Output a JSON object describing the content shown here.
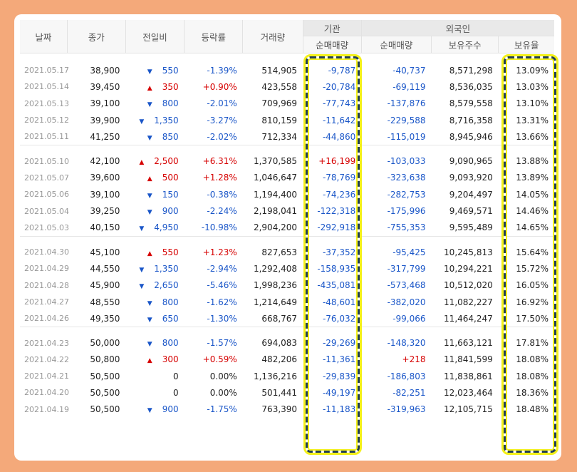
{
  "headers": {
    "date": "날짜",
    "close": "종가",
    "change": "전일비",
    "rate": "등락률",
    "volume": "거래량",
    "inst_group": "기관",
    "inst_net": "순매매량",
    "foreign_group": "외국인",
    "foreign_net": "순매매량",
    "foreign_shares": "보유주수",
    "foreign_ratio": "보유율"
  },
  "groups": [
    [
      {
        "date": "2021.05.17",
        "close": "38,900",
        "dir": "down",
        "change": "550",
        "rate": "-1.39%",
        "volume": "514,905",
        "inst": "-9,787",
        "fnet": "-40,737",
        "shares": "8,571,298",
        "ratio": "13.09%"
      },
      {
        "date": "2021.05.14",
        "close": "39,450",
        "dir": "up",
        "change": "350",
        "rate": "+0.90%",
        "volume": "423,558",
        "inst": "-20,784",
        "fnet": "-69,119",
        "shares": "8,536,035",
        "ratio": "13.03%"
      },
      {
        "date": "2021.05.13",
        "close": "39,100",
        "dir": "down",
        "change": "800",
        "rate": "-2.01%",
        "volume": "709,969",
        "inst": "-77,743",
        "fnet": "-137,876",
        "shares": "8,579,558",
        "ratio": "13.10%"
      },
      {
        "date": "2021.05.12",
        "close": "39,900",
        "dir": "down",
        "change": "1,350",
        "rate": "-3.27%",
        "volume": "810,159",
        "inst": "-11,642",
        "fnet": "-229,588",
        "shares": "8,716,358",
        "ratio": "13.31%"
      },
      {
        "date": "2021.05.11",
        "close": "41,250",
        "dir": "down",
        "change": "850",
        "rate": "-2.02%",
        "volume": "712,334",
        "inst": "-44,860",
        "fnet": "-115,019",
        "shares": "8,945,946",
        "ratio": "13.66%"
      }
    ],
    [
      {
        "date": "2021.05.10",
        "close": "42,100",
        "dir": "up",
        "change": "2,500",
        "rate": "+6.31%",
        "volume": "1,370,585",
        "inst": "+16,199",
        "fnet": "-103,033",
        "shares": "9,090,965",
        "ratio": "13.88%"
      },
      {
        "date": "2021.05.07",
        "close": "39,600",
        "dir": "up",
        "change": "500",
        "rate": "+1.28%",
        "volume": "1,046,647",
        "inst": "-78,769",
        "fnet": "-323,638",
        "shares": "9,093,920",
        "ratio": "13.89%"
      },
      {
        "date": "2021.05.06",
        "close": "39,100",
        "dir": "down",
        "change": "150",
        "rate": "-0.38%",
        "volume": "1,194,400",
        "inst": "-74,236",
        "fnet": "-282,753",
        "shares": "9,204,497",
        "ratio": "14.05%"
      },
      {
        "date": "2021.05.04",
        "close": "39,250",
        "dir": "down",
        "change": "900",
        "rate": "-2.24%",
        "volume": "2,198,041",
        "inst": "-122,318",
        "fnet": "-175,996",
        "shares": "9,469,571",
        "ratio": "14.46%"
      },
      {
        "date": "2021.05.03",
        "close": "40,150",
        "dir": "down",
        "change": "4,950",
        "rate": "-10.98%",
        "volume": "2,904,200",
        "inst": "-292,918",
        "fnet": "-755,353",
        "shares": "9,595,489",
        "ratio": "14.65%"
      }
    ],
    [
      {
        "date": "2021.04.30",
        "close": "45,100",
        "dir": "up",
        "change": "550",
        "rate": "+1.23%",
        "volume": "827,653",
        "inst": "-37,352",
        "fnet": "-95,425",
        "shares": "10,245,813",
        "ratio": "15.64%"
      },
      {
        "date": "2021.04.29",
        "close": "44,550",
        "dir": "down",
        "change": "1,350",
        "rate": "-2.94%",
        "volume": "1,292,408",
        "inst": "-158,935",
        "fnet": "-317,799",
        "shares": "10,294,221",
        "ratio": "15.72%"
      },
      {
        "date": "2021.04.28",
        "close": "45,900",
        "dir": "down",
        "change": "2,650",
        "rate": "-5.46%",
        "volume": "1,998,236",
        "inst": "-435,081",
        "fnet": "-573,468",
        "shares": "10,512,020",
        "ratio": "16.05%"
      },
      {
        "date": "2021.04.27",
        "close": "48,550",
        "dir": "down",
        "change": "800",
        "rate": "-1.62%",
        "volume": "1,214,649",
        "inst": "-48,601",
        "fnet": "-382,020",
        "shares": "11,082,227",
        "ratio": "16.92%"
      },
      {
        "date": "2021.04.26",
        "close": "49,350",
        "dir": "down",
        "change": "650",
        "rate": "-1.30%",
        "volume": "668,767",
        "inst": "-76,032",
        "fnet": "-99,066",
        "shares": "11,464,247",
        "ratio": "17.50%"
      }
    ],
    [
      {
        "date": "2021.04.23",
        "close": "50,000",
        "dir": "down",
        "change": "800",
        "rate": "-1.57%",
        "volume": "694,083",
        "inst": "-29,269",
        "fnet": "-148,320",
        "shares": "11,663,121",
        "ratio": "17.81%"
      },
      {
        "date": "2021.04.22",
        "close": "50,800",
        "dir": "up",
        "change": "300",
        "rate": "+0.59%",
        "volume": "482,206",
        "inst": "-11,361",
        "fnet": "+218",
        "shares": "11,841,599",
        "ratio": "18.08%"
      },
      {
        "date": "2021.04.21",
        "close": "50,500",
        "dir": "none",
        "change": "0",
        "rate": "0.00%",
        "volume": "1,136,216",
        "inst": "-29,839",
        "fnet": "-186,803",
        "shares": "11,838,861",
        "ratio": "18.08%"
      },
      {
        "date": "2021.04.20",
        "close": "50,500",
        "dir": "none",
        "change": "0",
        "rate": "0.00%",
        "volume": "501,441",
        "inst": "-49,197",
        "fnet": "-82,251",
        "shares": "12,023,464",
        "ratio": "18.36%"
      },
      {
        "date": "2021.04.19",
        "close": "50,500",
        "dir": "down",
        "change": "900",
        "rate": "-1.75%",
        "volume": "763,390",
        "inst": "-11,183",
        "fnet": "-319,963",
        "shares": "12,105,715",
        "ratio": "18.48%"
      }
    ]
  ]
}
